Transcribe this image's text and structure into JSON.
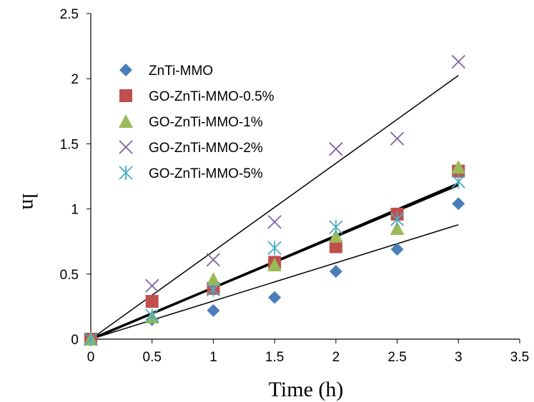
{
  "chart_data": {
    "type": "scatter",
    "title": "",
    "xlabel": "Time (h)",
    "ylabel": "ln",
    "xlim": [
      0,
      3.5
    ],
    "ylim": [
      0,
      2.5
    ],
    "x_ticks": [
      "0",
      "0.5",
      "1",
      "1.5",
      "2",
      "2.5",
      "3",
      "3.5"
    ],
    "y_ticks": [
      "0",
      "0.5",
      "1",
      "1.5",
      "2",
      "2.5"
    ],
    "grid": false,
    "legend_position": "top-left",
    "x": [
      0,
      0.5,
      1,
      1.5,
      2,
      2.5,
      3
    ],
    "series": [
      {
        "name": "ZnTi-MMO",
        "marker": "diamond",
        "color": "#4a7ebb",
        "values": [
          0,
          0.15,
          0.22,
          0.32,
          0.52,
          0.69,
          1.04
        ]
      },
      {
        "name": "GO-ZnTi-MMO-0.5%",
        "marker": "square",
        "color": "#c0504d",
        "values": [
          0,
          0.29,
          0.39,
          0.59,
          0.71,
          0.96,
          1.29
        ]
      },
      {
        "name": "GO-ZnTi-MMO-1%",
        "marker": "triangle",
        "color": "#9bbb59",
        "values": [
          0,
          0.17,
          0.46,
          0.57,
          0.79,
          0.85,
          1.32
        ]
      },
      {
        "name": "GO-ZnTi-MMO-2%",
        "marker": "x",
        "color": "#8064a2",
        "values": [
          0,
          0.41,
          0.61,
          0.9,
          1.46,
          1.54,
          2.13
        ]
      },
      {
        "name": "GO-ZnTi-MMO-5%",
        "marker": "star",
        "color": "#4bacc6",
        "values": [
          0,
          0.18,
          0.38,
          0.7,
          0.86,
          0.92,
          1.21
        ]
      }
    ],
    "trendlines": [
      {
        "slope": 0.675,
        "width": 1.5
      },
      {
        "slope": 0.395,
        "width": 3.5
      },
      {
        "slope": 0.4,
        "width": 1.5
      },
      {
        "slope": 0.293,
        "width": 1.5
      }
    ]
  }
}
